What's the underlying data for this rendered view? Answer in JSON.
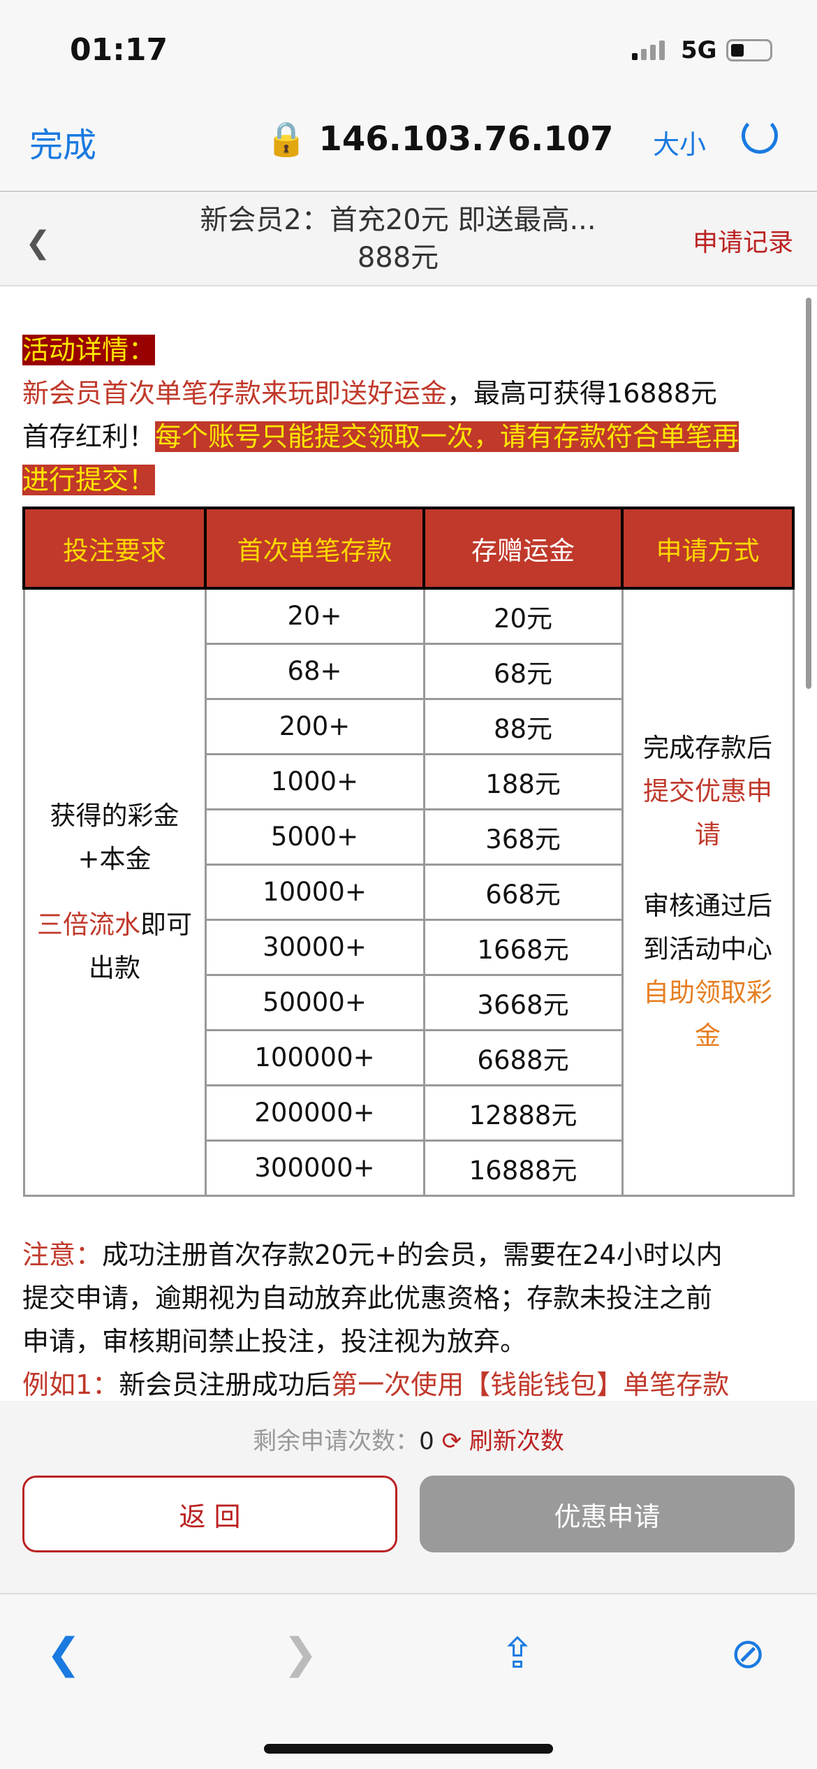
{
  "status": {
    "time": "01:17",
    "network": "5G"
  },
  "browser": {
    "done": "完成",
    "url": "146.103.76.107",
    "text_size": "大小"
  },
  "header": {
    "title_line1": "新会员2：首充20元 即送最高...",
    "title_line2": "888元",
    "records": "申请记录"
  },
  "intro": {
    "label": "活动详情：",
    "line1_red": "新会员首次单笔存款来玩即送好运金",
    "line1_black": "，最高可获得16888元",
    "line2_black": "首存红利！",
    "highlight": "每个账号只能提交领取一次，请有存款符合单笔再",
    "highlight2": "进行提交！"
  },
  "table": {
    "headers": [
      "投注要求",
      "首次单笔存款",
      "存赠运金",
      "申请方式"
    ],
    "requirement": {
      "l1": "获得的彩金",
      "l2": "+本金",
      "red": "三倍流水",
      "suffix": "即可",
      "l4": "出款"
    },
    "rows": [
      [
        "20+",
        "20元"
      ],
      [
        "68+",
        "68元"
      ],
      [
        "200+",
        "88元"
      ],
      [
        "1000+",
        "188元"
      ],
      [
        "5000+",
        "368元"
      ],
      [
        "10000+",
        "668元"
      ],
      [
        "30000+",
        "1668元"
      ],
      [
        "50000+",
        "3668元"
      ],
      [
        "100000+",
        "6688元"
      ],
      [
        "200000+",
        "12888元"
      ],
      [
        "300000+",
        "16888元"
      ]
    ],
    "method": {
      "l1": "完成存款后",
      "red": "提交优惠申",
      "red2": "请",
      "l2": "审核通过后",
      "l3": "到活动中心",
      "orange": "自助领取彩",
      "orange2": "金"
    }
  },
  "notice": {
    "label": "注意：",
    "text1": "成功注册首次存款20元+的会员，需要在24小时以内",
    "text2": "提交申请，逾期视为自动放弃此优惠资格；存款未投注之前",
    "text3": "申请，审核期间禁止投注，投注视为放弃。",
    "example_label": "例如1：",
    "example_text": "新会员注册成功后",
    "example_red": "第一次使用【钱能钱包】单笔存款"
  },
  "footer": {
    "remain_label": "剩余申请次数：",
    "remain_value": "0",
    "refresh": "刷新次数",
    "back": "返 回",
    "apply": "优惠申请"
  },
  "colors": {
    "accent": "#c0392b",
    "highlight": "#ffe600",
    "link": "#1a7ae0"
  }
}
